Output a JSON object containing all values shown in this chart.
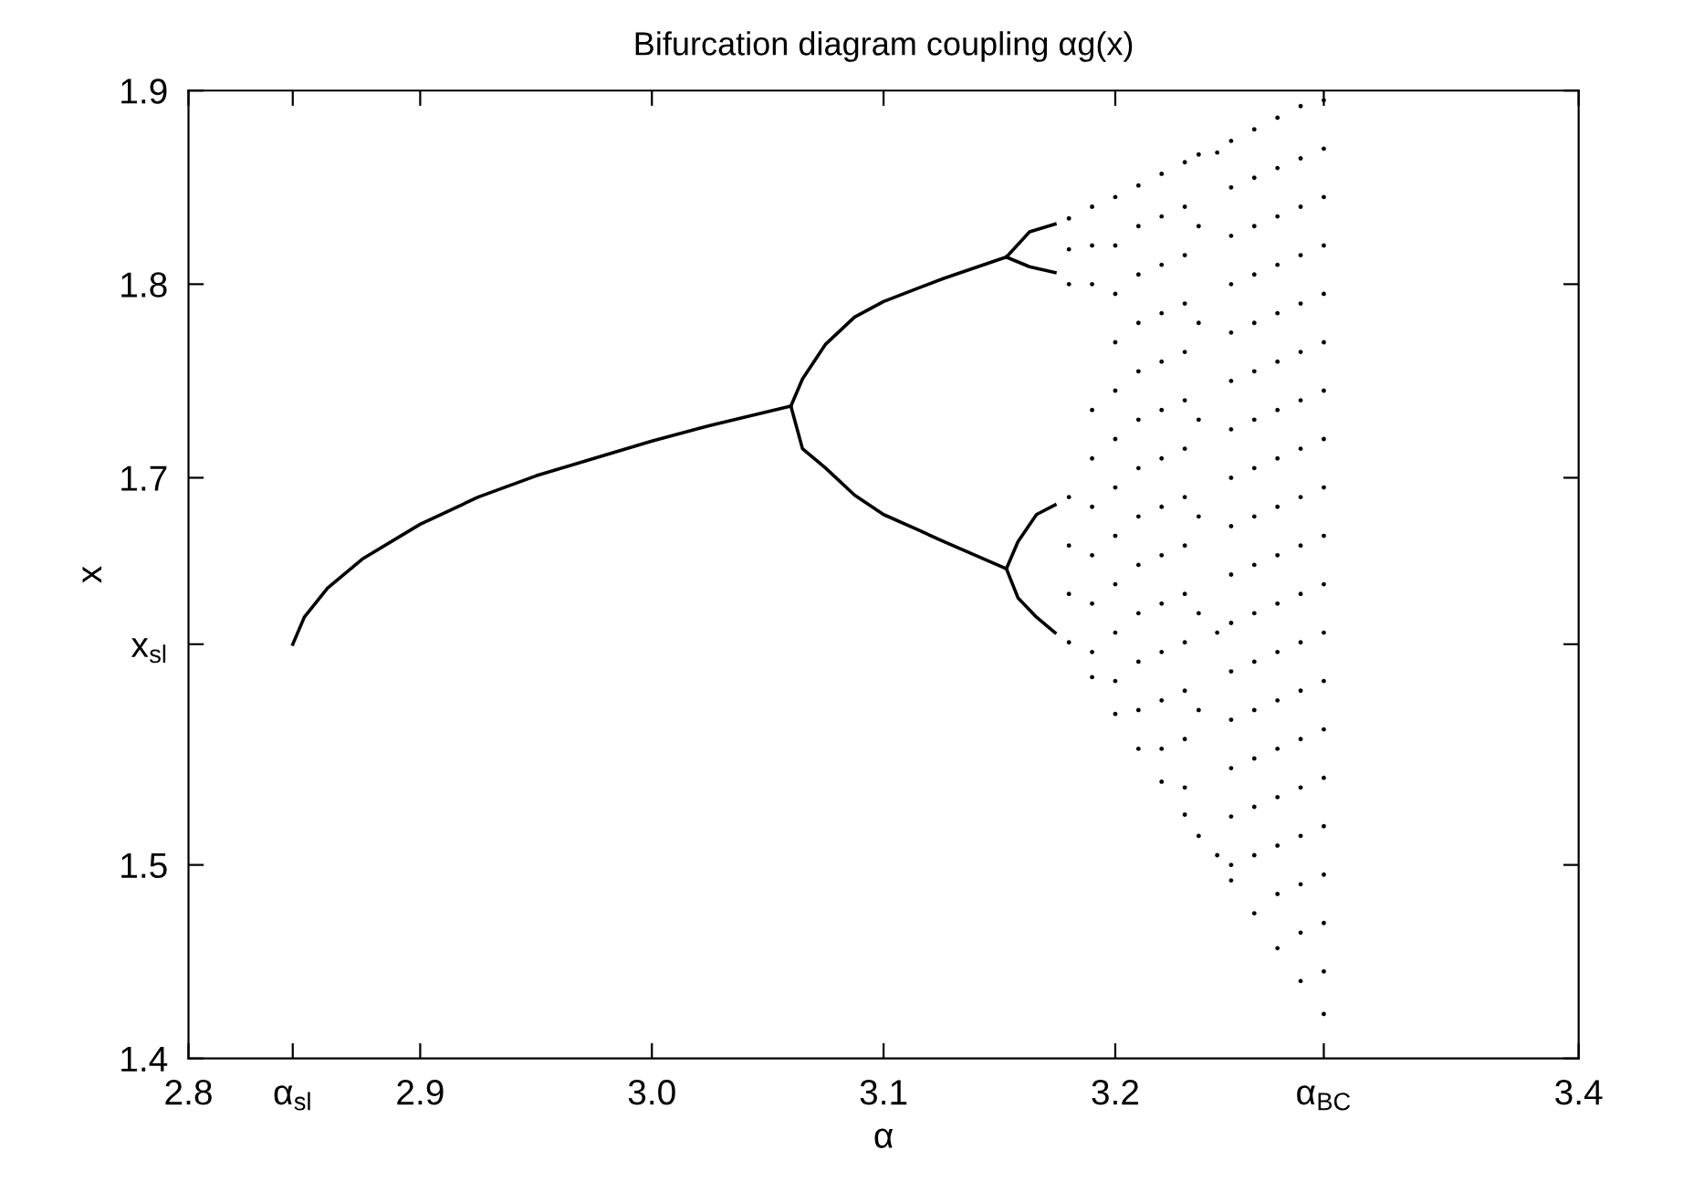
{
  "chart_data": {
    "type": "scatter",
    "title": "Bifurcation diagram coupling αg(x)",
    "xlabel": "α",
    "ylabel": "x",
    "xlim": [
      2.8,
      3.4
    ],
    "ylim": [
      1.4,
      1.9
    ],
    "xticks": [
      2.8,
      {
        "value": 2.845,
        "label": "α$_{sl}$"
      },
      2.9,
      {
        "value": 3.0,
        "label": "3.0"
      },
      3.1,
      3.2,
      {
        "value": 3.29,
        "label": "α$_{BC}$"
      },
      3.4
    ],
    "yticks": [
      1.4,
      1.5,
      {
        "value": 1.614,
        "label": "x$_{sl}$"
      },
      1.7,
      1.8,
      1.9
    ],
    "grid": false,
    "series": [
      {
        "type": "line",
        "color": "#000000",
        "x": [
          2.845,
          2.85,
          2.86,
          2.875,
          2.9,
          2.925,
          2.95,
          2.975,
          3.0,
          3.025,
          3.06
        ],
        "values": [
          1.614,
          1.628,
          1.643,
          1.658,
          1.676,
          1.69,
          1.701,
          1.71,
          1.719,
          1.727,
          1.737
        ]
      },
      {
        "type": "line",
        "color": "#000000",
        "x": [
          3.06,
          3.065,
          3.075,
          3.0875,
          3.1,
          3.115,
          3.126,
          3.153
        ],
        "values": [
          1.737,
          1.751,
          1.769,
          1.783,
          1.791,
          1.798,
          1.803,
          1.814
        ]
      },
      {
        "type": "line",
        "color": "#000000",
        "x": [
          3.06,
          3.065,
          3.075,
          3.0875,
          3.1,
          3.115,
          3.126,
          3.153
        ],
        "values": [
          1.737,
          1.715,
          1.705,
          1.691,
          1.681,
          1.673,
          1.667,
          1.653
        ]
      },
      {
        "type": "line",
        "color": "#000000",
        "x": [
          3.153,
          3.163,
          3.174
        ],
        "values": [
          1.814,
          1.827,
          1.831
        ]
      },
      {
        "type": "line",
        "color": "#000000",
        "x": [
          3.153,
          3.163,
          3.174
        ],
        "values": [
          1.814,
          1.809,
          1.806
        ]
      },
      {
        "type": "line",
        "color": "#000000",
        "x": [
          3.153,
          3.158,
          3.166,
          3.174
        ],
        "values": [
          1.653,
          1.667,
          1.681,
          1.686
        ]
      },
      {
        "type": "line",
        "color": "#000000",
        "x": [
          3.153,
          3.158,
          3.166,
          3.174
        ],
        "values": [
          1.653,
          1.638,
          1.628,
          1.62
        ]
      },
      {
        "type": "scatter",
        "color": "#000000",
        "x": [
          3.18,
          3.18,
          3.18,
          3.18,
          3.18,
          3.18,
          3.18
        ],
        "values": [
          1.834,
          1.818,
          1.8,
          1.69,
          1.665,
          1.64,
          1.615
        ]
      },
      {
        "type": "scatter",
        "color": "#000000",
        "x": [
          3.19,
          3.19,
          3.19,
          3.19,
          3.19,
          3.19,
          3.19,
          3.19,
          3.19,
          3.19
        ],
        "values": [
          1.84,
          1.82,
          1.8,
          1.735,
          1.71,
          1.685,
          1.66,
          1.635,
          1.61,
          1.597
        ]
      },
      {
        "type": "scatter",
        "color": "#000000",
        "x": [
          3.2,
          3.2,
          3.2,
          3.2,
          3.2,
          3.2,
          3.2,
          3.2,
          3.2,
          3.2,
          3.2,
          3.2
        ],
        "values": [
          1.845,
          1.82,
          1.795,
          1.77,
          1.745,
          1.72,
          1.695,
          1.67,
          1.645,
          1.62,
          1.595,
          1.578
        ]
      },
      {
        "type": "scatter",
        "color": "#000000",
        "x": [
          3.21,
          3.21,
          3.21,
          3.21,
          3.21,
          3.21,
          3.21,
          3.21,
          3.21,
          3.21,
          3.21,
          3.21,
          3.21
        ],
        "values": [
          1.851,
          1.83,
          1.805,
          1.78,
          1.755,
          1.73,
          1.705,
          1.68,
          1.655,
          1.63,
          1.605,
          1.58,
          1.56
        ]
      },
      {
        "type": "scatter",
        "color": "#000000",
        "x": [
          3.22,
          3.22,
          3.22,
          3.22,
          3.22,
          3.22,
          3.22,
          3.22,
          3.22,
          3.22,
          3.22,
          3.22,
          3.22,
          3.22
        ],
        "values": [
          1.857,
          1.835,
          1.81,
          1.785,
          1.76,
          1.735,
          1.71,
          1.685,
          1.66,
          1.635,
          1.61,
          1.585,
          1.56,
          1.543
        ]
      },
      {
        "type": "scatter",
        "color": "#000000",
        "x": [
          3.23,
          3.23,
          3.23,
          3.23,
          3.23,
          3.23,
          3.23,
          3.23,
          3.23,
          3.23,
          3.23,
          3.23,
          3.23,
          3.23,
          3.23
        ],
        "values": [
          1.863,
          1.84,
          1.815,
          1.79,
          1.765,
          1.74,
          1.715,
          1.69,
          1.665,
          1.64,
          1.615,
          1.59,
          1.565,
          1.54,
          1.526
        ]
      },
      {
        "type": "scatter",
        "color": "#000000",
        "x": [
          3.236,
          3.236,
          3.236,
          3.236,
          3.236,
          3.236,
          3.236,
          3.236
        ],
        "values": [
          1.867,
          1.83,
          1.78,
          1.73,
          1.68,
          1.63,
          1.58,
          1.515
        ]
      },
      {
        "type": "scatter",
        "color": "#000000",
        "x": [
          3.244,
          3.244,
          3.244
        ],
        "values": [
          1.868,
          1.62,
          1.505
        ]
      },
      {
        "type": "scatter",
        "color": "#000000",
        "x": [
          3.25,
          3.25,
          3.25,
          3.25,
          3.25,
          3.25,
          3.25,
          3.25,
          3.25,
          3.25,
          3.25,
          3.25,
          3.25,
          3.25,
          3.25,
          3.25,
          3.25
        ],
        "values": [
          1.874,
          1.85,
          1.825,
          1.8,
          1.775,
          1.75,
          1.725,
          1.7,
          1.675,
          1.65,
          1.625,
          1.6,
          1.575,
          1.55,
          1.525,
          1.5,
          1.492
        ]
      },
      {
        "type": "scatter",
        "color": "#000000",
        "x": [
          3.26,
          3.26,
          3.26,
          3.26,
          3.26,
          3.26,
          3.26,
          3.26,
          3.26,
          3.26,
          3.26,
          3.26,
          3.26,
          3.26,
          3.26,
          3.26,
          3.26
        ],
        "values": [
          1.88,
          1.855,
          1.83,
          1.805,
          1.78,
          1.755,
          1.73,
          1.705,
          1.68,
          1.655,
          1.63,
          1.605,
          1.58,
          1.555,
          1.53,
          1.505,
          1.475
        ]
      },
      {
        "type": "scatter",
        "color": "#000000",
        "x": [
          3.27,
          3.27,
          3.27,
          3.27,
          3.27,
          3.27,
          3.27,
          3.27,
          3.27,
          3.27,
          3.27,
          3.27,
          3.27,
          3.27,
          3.27,
          3.27,
          3.27,
          3.27
        ],
        "values": [
          1.886,
          1.86,
          1.835,
          1.81,
          1.785,
          1.76,
          1.735,
          1.71,
          1.685,
          1.66,
          1.635,
          1.61,
          1.585,
          1.56,
          1.535,
          1.51,
          1.485,
          1.457
        ]
      },
      {
        "type": "scatter",
        "color": "#000000",
        "x": [
          3.28,
          3.28,
          3.28,
          3.28,
          3.28,
          3.28,
          3.28,
          3.28,
          3.28,
          3.28,
          3.28,
          3.28,
          3.28,
          3.28,
          3.28,
          3.28,
          3.28,
          3.28,
          3.28
        ],
        "values": [
          1.892,
          1.865,
          1.84,
          1.815,
          1.79,
          1.765,
          1.74,
          1.715,
          1.69,
          1.665,
          1.64,
          1.615,
          1.59,
          1.565,
          1.54,
          1.515,
          1.49,
          1.465,
          1.44
        ]
      },
      {
        "type": "scatter",
        "color": "#000000",
        "x": [
          3.29,
          3.29,
          3.29,
          3.29,
          3.29,
          3.29,
          3.29,
          3.29,
          3.29,
          3.29,
          3.29,
          3.29,
          3.29,
          3.29,
          3.29,
          3.29,
          3.29,
          3.29,
          3.29,
          3.29
        ],
        "values": [
          1.895,
          1.87,
          1.845,
          1.82,
          1.795,
          1.77,
          1.745,
          1.72,
          1.695,
          1.67,
          1.645,
          1.62,
          1.595,
          1.57,
          1.545,
          1.52,
          1.495,
          1.47,
          1.445,
          1.423
        ]
      }
    ]
  }
}
